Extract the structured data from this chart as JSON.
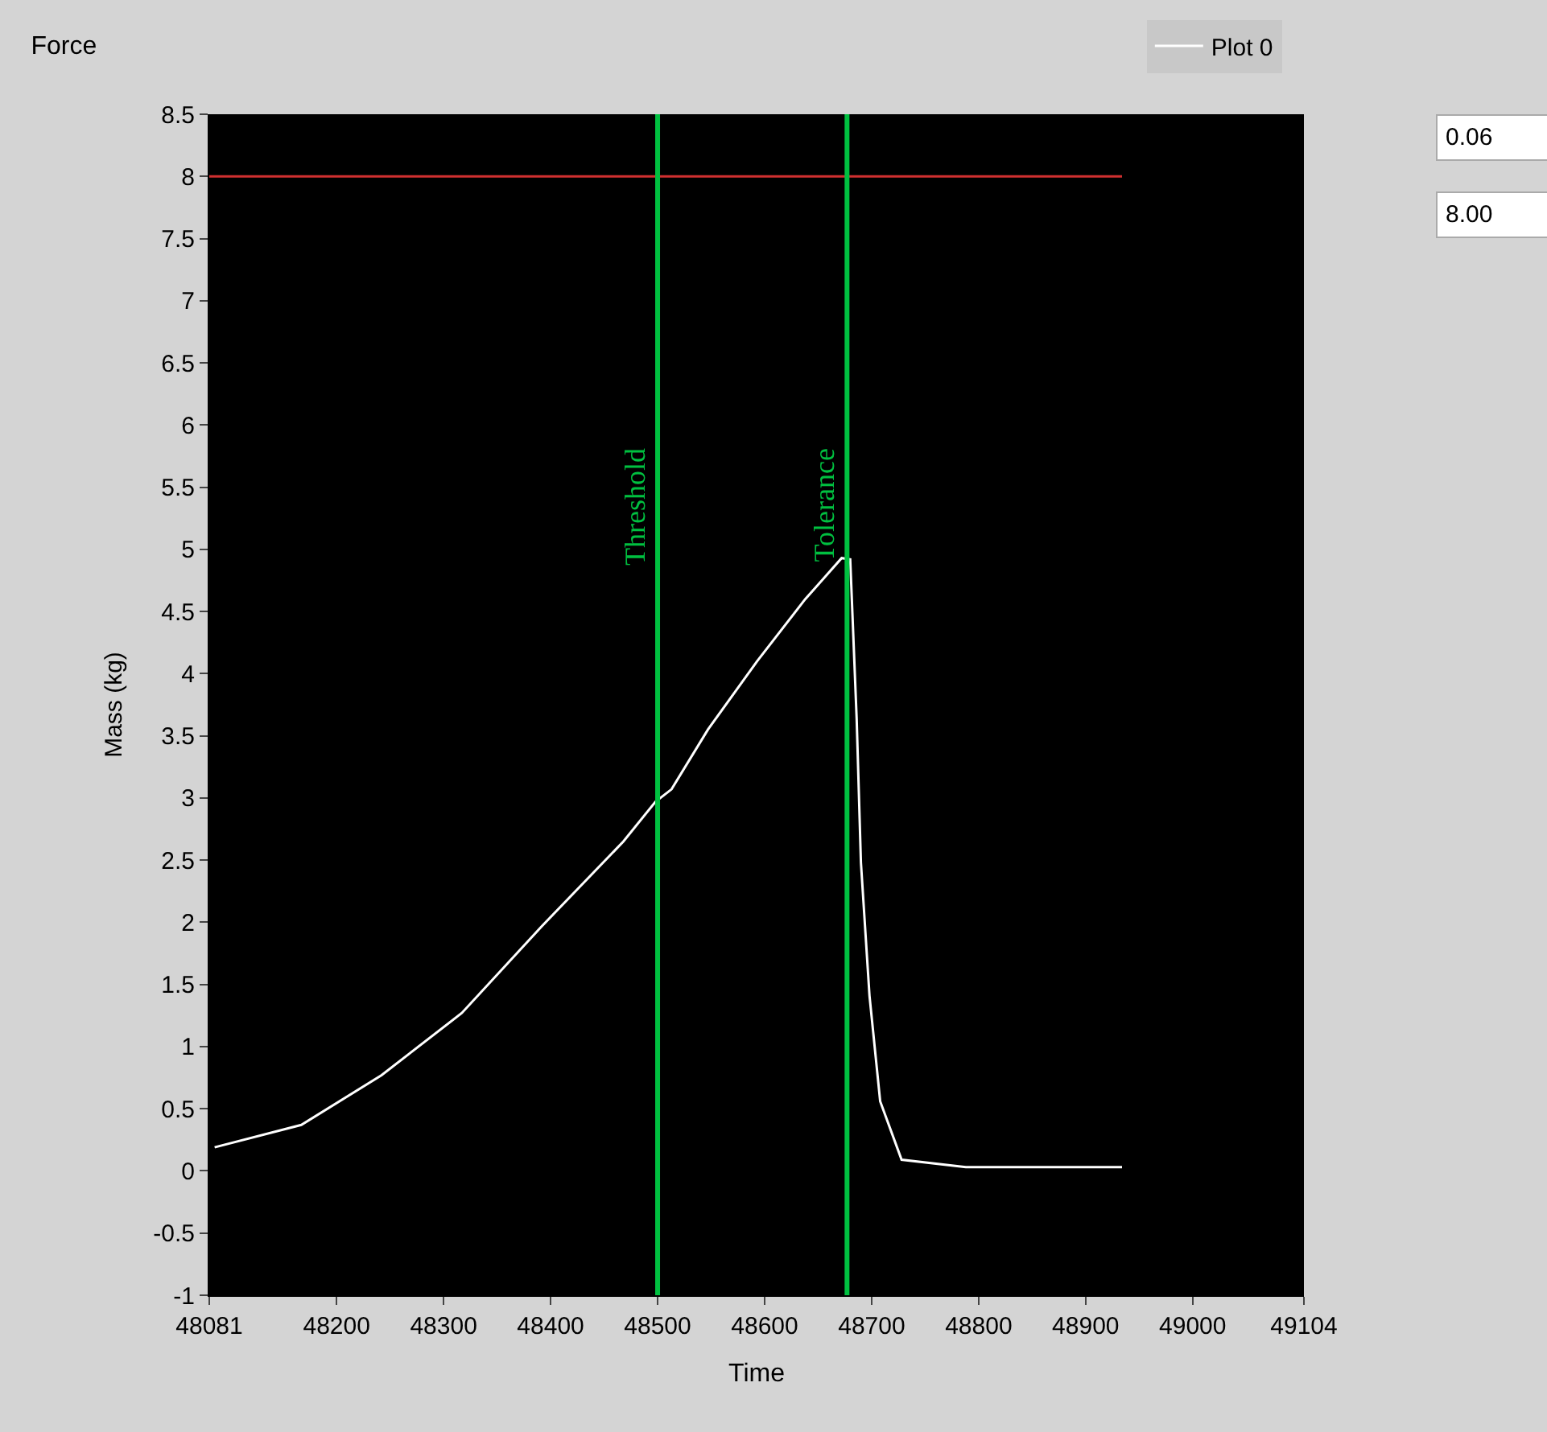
{
  "chart_data": {
    "type": "line",
    "title": "Force",
    "xlabel": "Time",
    "ylabel": "Mass (kg)",
    "xlim": [
      48081,
      49104
    ],
    "xticks": [
      48081,
      48200,
      48300,
      48400,
      48500,
      48600,
      48700,
      48800,
      48900,
      49000,
      49104
    ],
    "ylim": [
      -1,
      8.5
    ],
    "yticks": [
      -1,
      -0.5,
      0,
      0.5,
      1,
      1.5,
      2,
      2.5,
      3,
      3.5,
      4,
      4.5,
      5,
      5.5,
      6,
      6.5,
      7,
      7.5,
      8,
      8.5
    ],
    "grid": false,
    "legend": "top right",
    "marker": "none",
    "line_style": "solid",
    "series": [
      {
        "name": "Plot 0",
        "color": "#ffffff",
        "x": [
          48086,
          48167,
          48242,
          48317,
          48392,
          48468,
          48498,
          48513,
          48547,
          48593,
          48638,
          48672,
          48680,
          48686,
          48690,
          48698,
          48708,
          48728,
          48788,
          48863,
          48934
        ],
        "values": [
          0.19,
          0.37,
          0.77,
          1.27,
          1.97,
          2.65,
          2.97,
          3.07,
          3.55,
          4.1,
          4.6,
          4.93,
          4.92,
          3.64,
          2.48,
          1.41,
          0.56,
          0.09,
          0.03,
          0.03,
          0.03
        ]
      },
      {
        "color": "#d03030",
        "x": [
          48081,
          48934
        ],
        "values": [
          8,
          8
        ]
      }
    ],
    "ref_lines": [
      {
        "axis": "x",
        "value": 48500,
        "label": "Threshold",
        "color": "#00c040"
      },
      {
        "axis": "x",
        "value": 48677,
        "label": "Tolerance",
        "color": "#00c040"
      }
    ],
    "annotations": [
      "0.06",
      "8.00"
    ]
  }
}
